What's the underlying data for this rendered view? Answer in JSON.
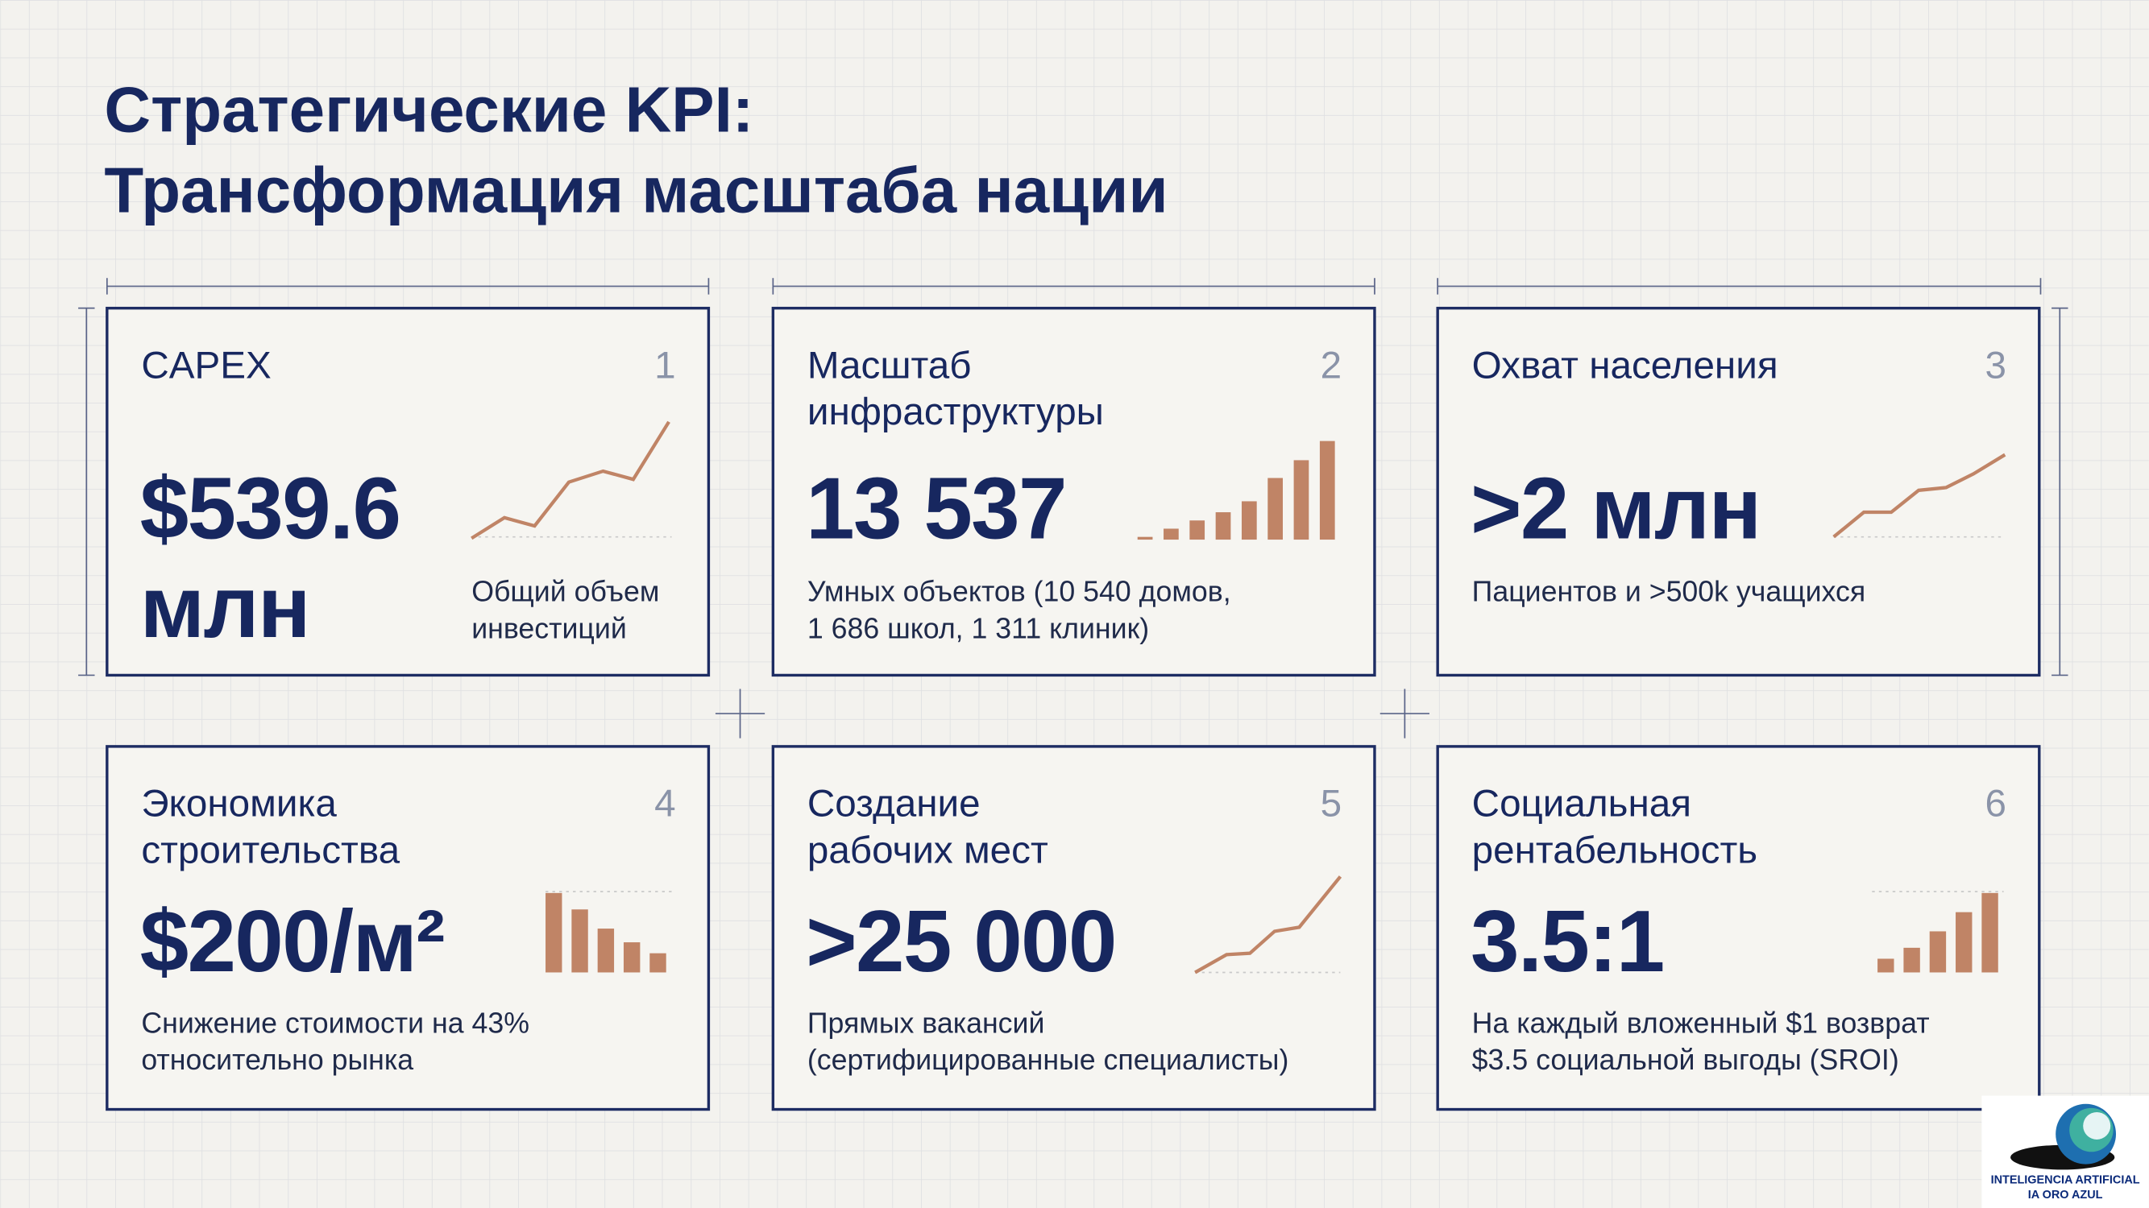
{
  "header": {
    "title": [
      "Стратегические KPI:",
      "Трансформация масштаба нации"
    ]
  },
  "cards": [
    {
      "number": "1",
      "label": [
        "CAPEX"
      ],
      "value": [
        "$539.6",
        "млн"
      ],
      "description": [
        "Общий объем",
        "инвестиций"
      ]
    },
    {
      "number": "2",
      "label": [
        "Масштаб",
        "инфраструктуры"
      ],
      "value": [
        "13 537"
      ],
      "description": [
        "Умных объектов (10 540 домов,",
        "1 686 школ, 1 311 клиник)"
      ]
    },
    {
      "number": "3",
      "label": [
        "Охват населения"
      ],
      "value": [
        ">2 млн"
      ],
      "description": [
        "Пациентов и >500k учащихся"
      ]
    },
    {
      "number": "4",
      "label": [
        "Экономика",
        "строительства"
      ],
      "value": [
        "$200/м²"
      ],
      "description": [
        "Снижение стоимости на 43%",
        "относительно рынка"
      ]
    },
    {
      "number": "5",
      "label": [
        "Создание",
        "рабочих мест"
      ],
      "value": [
        ">25 000"
      ],
      "description": [
        "Прямых вакансий",
        "(сертифицированные специалисты)"
      ]
    },
    {
      "number": "6",
      "label": [
        "Социальная",
        "рентабельность"
      ],
      "value": [
        "3.5:1"
      ],
      "description": [
        "На каждый вложенный $1 возврат",
        "$3.5 социальной выгоды (SROI)"
      ]
    }
  ],
  "logo": [
    "INTELIGENCIA ARTIFICIAL",
    "IA ORO AZUL"
  ]
}
